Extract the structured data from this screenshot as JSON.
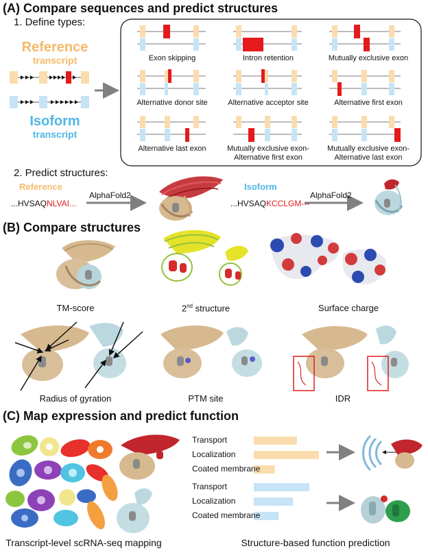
{
  "section_a": {
    "title": "(A) Compare sequences and predict structures",
    "step1": "1. Define types:",
    "reference_word": "Reference",
    "reference_sub": "transcript",
    "isoform_word": "Isoform",
    "isoform_sub": "transcript",
    "types": [
      "Exon skipping",
      "Intron retention",
      "Mutually exclusive exon",
      "Alternative donor site",
      "Alternative acceptor site",
      "Alternative first exon",
      "Alternative last exon",
      "Mutually exclusive exon-",
      "Alternative first exon",
      "Mutually exclusive exon-",
      "Alternative last exon"
    ],
    "step2": "2. Predict structures:",
    "ref_label": "Reference",
    "ref_seq_black": "...HVSAQ",
    "ref_seq_red": "NLVAI...",
    "iso_label": "Isoform",
    "iso_seq_black": "...HVSAQ",
    "iso_seq_red": "KCCLGM---",
    "tool": "AlphaFold2",
    "tool2": "AlphaFold2"
  },
  "section_b": {
    "title": "(B) Compare structures",
    "tm_score": "TM-score",
    "second_prefix": "2",
    "second_sup": "nd",
    "second_suffix": " structure",
    "surface_charge": "Surface charge",
    "radius": "Radius of gyration",
    "ptm": "PTM site",
    "idr": "IDR"
  },
  "section_c": {
    "title": "(C) Map expression and predict function",
    "ref_terms": [
      "Transport",
      "Localization",
      "Coated membrane"
    ],
    "ref_values": [
      0.45,
      0.68,
      0.22
    ],
    "iso_terms": [
      "Transport",
      "Localization",
      "Coated membrane"
    ],
    "iso_values": [
      0.58,
      0.41,
      0.26
    ],
    "caption_left": "Transcript-level scRNA-seq mapping",
    "caption_right": "Structure-based function prediction"
  },
  "colors": {
    "reference": "#f5b969",
    "reference_light": "#fbdcae",
    "isoform": "#4fb6e6",
    "isoform_light": "#c6e4f6",
    "highlight": "#e41a1c",
    "arrow": "#808080"
  }
}
